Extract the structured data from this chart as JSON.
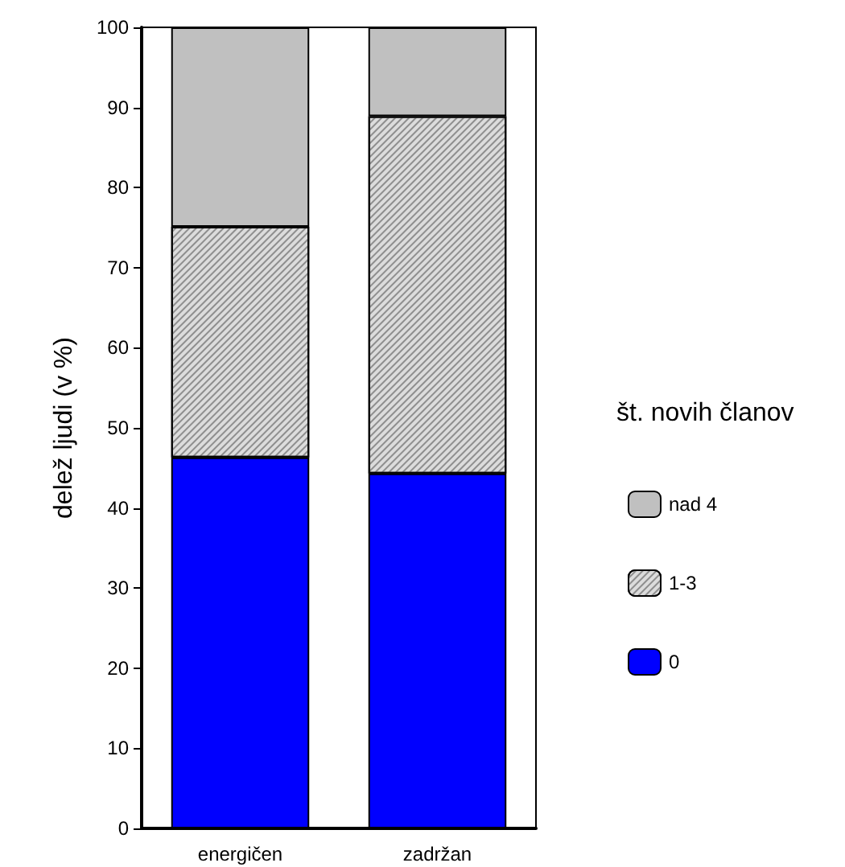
{
  "chart_data": {
    "type": "bar",
    "stacked": true,
    "ylabel": "delež ljudi (v %)",
    "legend_title": "št. novih članov",
    "categories": [
      "energičen",
      "zadržan"
    ],
    "series": [
      {
        "name": "0",
        "color": "#0000ff",
        "values": [
          46.3,
          44.3
        ]
      },
      {
        "name": "1-3",
        "color": "#dcdcdc",
        "values": [
          28.8,
          44.6
        ]
      },
      {
        "name": "nad 4",
        "color": "#c0c0c0",
        "values": [
          24.9,
          11.1
        ]
      }
    ],
    "ylim": [
      0,
      100
    ],
    "yticks": [
      0,
      10,
      20,
      30,
      40,
      50,
      60,
      70,
      80,
      90,
      100
    ],
    "grid": false,
    "legend": "right"
  }
}
